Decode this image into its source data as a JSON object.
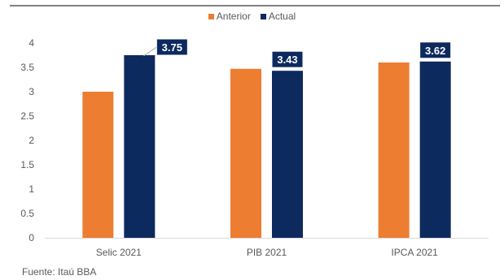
{
  "chart_data": {
    "type": "bar",
    "categories": [
      "Selic 2021",
      "PIB 2021",
      "IPCA 2021"
    ],
    "series": [
      {
        "name": "Anterior",
        "color": "#ED7D31",
        "values": [
          3.0,
          3.47,
          3.6
        ]
      },
      {
        "name": "Actual",
        "color": "#0D2A5E",
        "values": [
          3.75,
          3.43,
          3.62
        ]
      }
    ],
    "data_labels": {
      "Actual": [
        "3.75",
        "3.43",
        "3.62"
      ]
    },
    "y_ticks": [
      "0",
      "0.5",
      "1",
      "1.5",
      "2",
      "2.5",
      "3",
      "3.5",
      "4"
    ],
    "ylim": [
      0,
      4
    ],
    "grid": false,
    "legend_position": "top-center"
  },
  "source_note": "Fuente: Itaú BBA"
}
